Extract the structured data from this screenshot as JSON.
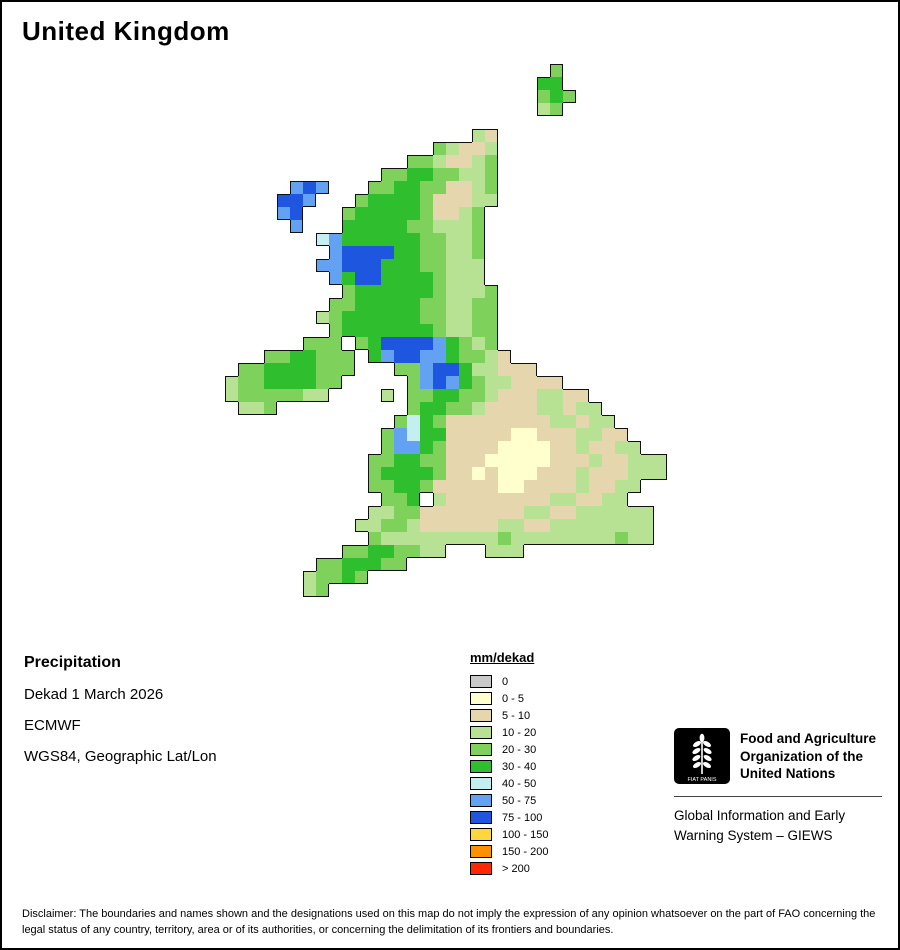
{
  "title": "United Kingdom",
  "info": {
    "parameter": "Precipitation",
    "dekad": "Dekad 1 March 2026",
    "source": "ECMWF",
    "projection": "WGS84, Geographic Lat/Lon"
  },
  "legend": {
    "title": "mm/dekad",
    "entries": [
      {
        "key": "0",
        "label": "0",
        "color": "#c9c9c9"
      },
      {
        "key": "a",
        "label": "0 - 5",
        "color": "#ffffcd"
      },
      {
        "key": "b",
        "label": "5 - 10",
        "color": "#e5d6ad"
      },
      {
        "key": "c",
        "label": "10 - 20",
        "color": "#b7e293"
      },
      {
        "key": "d",
        "label": "20 - 30",
        "color": "#7ed25c"
      },
      {
        "key": "e",
        "label": "30 - 40",
        "color": "#2ebe2e"
      },
      {
        "key": "f",
        "label": "40 - 50",
        "color": "#c4eef0"
      },
      {
        "key": "g",
        "label": "50 - 75",
        "color": "#63a1f2"
      },
      {
        "key": "h",
        "label": "75 - 100",
        "color": "#1e56e0"
      },
      {
        "key": "i",
        "label": "100 - 150",
        "color": "#ffd73c"
      },
      {
        "key": "j",
        "label": "150 - 200",
        "color": "#ff9000"
      },
      {
        "key": "k",
        "label": "> 200",
        "color": "#ff2800"
      }
    ]
  },
  "map": {
    "rows": [
      [
        [
          26,
          "d"
        ]
      ],
      [
        [
          25,
          "ee"
        ]
      ],
      [
        [
          25,
          "ded"
        ]
      ],
      [
        [
          25,
          "cd"
        ]
      ],
      [],
      [
        [
          20,
          "cb"
        ]
      ],
      [
        [
          17,
          "dcbbc"
        ]
      ],
      [
        [
          15,
          "ddcbbcd"
        ]
      ],
      [
        [
          13,
          "ddeeddccd"
        ]
      ],
      [
        [
          6,
          "ghg"
        ],
        [
          12,
          "ddeeddbbcd"
        ]
      ],
      [
        [
          5,
          "hhg"
        ],
        [
          11,
          "deeeedbbbcc"
        ]
      ],
      [
        [
          5,
          "gh"
        ],
        [
          10,
          "deeeeedbbcd"
        ]
      ],
      [
        [
          6,
          "g"
        ],
        [
          10,
          "eeeeeddcccd"
        ]
      ],
      [
        [
          8,
          "fg"
        ],
        [
          10,
          "eeeeeeddccd"
        ]
      ],
      [
        [
          9,
          "ghhhheeddccd"
        ]
      ],
      [
        [
          8,
          "gghhheeeddccc"
        ]
      ],
      [
        [
          9,
          "gehheeeedccc"
        ]
      ],
      [
        [
          10,
          "deeeeeedcccd"
        ]
      ],
      [
        [
          9,
          "ddeeeeeddccdd"
        ]
      ],
      [
        [
          8,
          "cdeeeeeeddccdd"
        ]
      ],
      [
        [
          9,
          "deeeeeeedccdd"
        ]
      ],
      [
        [
          7,
          "ddd"
        ],
        [
          11,
          "dehhhhgedcd"
        ]
      ],
      [
        [
          4,
          "ddeeddd"
        ],
        [
          12,
          "eghhggeddcb"
        ]
      ],
      [
        [
          2,
          "ddeeeeddd"
        ],
        [
          14,
          "ddghheccbbb"
        ]
      ],
      [
        [
          1,
          "cddeeeedd"
        ],
        [
          15,
          "dghgedccbbbb"
        ]
      ],
      [
        [
          1,
          "cdddddcc"
        ],
        [
          13,
          "c"
        ],
        [
          15,
          "ddeeddcbbbccbb"
        ]
      ],
      [
        [
          2,
          "ccd"
        ],
        [
          15,
          "deeddcbbbbccbcc"
        ]
      ],
      [
        [
          14,
          "dfedbbbbbbbbccbcc"
        ]
      ],
      [
        [
          13,
          "dgfeebbbbbaabbbccbb"
        ]
      ],
      [
        [
          13,
          "dggedbbbbaaaabbcbbcc"
        ]
      ],
      [
        [
          12,
          "ddeeddbbbaaaaabbbcbbccc"
        ]
      ],
      [
        [
          12,
          "deeeedbbabaaabbbcbbbccc"
        ]
      ],
      [
        [
          12,
          "ddeedbbbbbaabbbbcbbcc"
        ]
      ],
      [
        [
          13,
          "dde"
        ],
        [
          17,
          "cbbbbbbbbccbbcc"
        ]
      ],
      [
        [
          12,
          "ccddbbbbbbbbccbbcccccc"
        ]
      ],
      [
        [
          11,
          "ccddcbbbbbbccbbcccccccc"
        ]
      ],
      [
        [
          12,
          "dcccccccccdccccccccdcc"
        ]
      ],
      [
        [
          10,
          "ddeeddcc"
        ],
        [
          21,
          "ccc"
        ]
      ],
      [
        [
          8,
          "ddeeedd"
        ]
      ],
      [
        [
          7,
          "cdded"
        ]
      ],
      [
        [
          7,
          "cd"
        ]
      ],
      []
    ]
  },
  "fao": {
    "org_name": "Food and Agriculture Organization of the United Nations",
    "giews": "Global Information and Early Warning System – GIEWS",
    "logo_motto": "FIAT PANIS"
  },
  "disclaimer": "Disclaimer: The boundaries and names shown and the designations used on this map do not imply the expression of any opinion whatsoever on the part of FAO concerning the legal status of any country, territory, area or of its authorities, or concerning the delimitation of its frontiers and boundaries."
}
